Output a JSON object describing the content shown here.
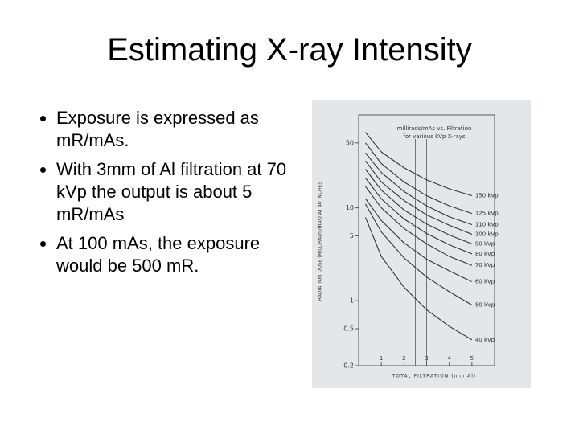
{
  "slide": {
    "title": "Estimating X-ray Intensity",
    "bullets": [
      "Exposure is expressed as mR/mAs.",
      "With 3mm of Al filtration at 70 kVp the output is about 5 mR/mAs",
      "At 100 mAs, the exposure would be 500 mR."
    ]
  },
  "chart_data": {
    "type": "line",
    "title_lines": [
      "millirads/mAs vs. Filtration",
      "for various kVp X-rays"
    ],
    "x_label": "TOTAL FILTRATION (mm Al)",
    "y_label": "RADIATION DOSE (MILLIRADS/mAs) AT 40 INCHES",
    "yscale": "log",
    "grid": false,
    "xlim": [
      0,
      6
    ],
    "xticks": [
      1,
      2,
      3,
      4,
      5
    ],
    "ylim": [
      0.2,
      100
    ],
    "yticks": [
      50,
      10,
      5,
      1,
      0.5,
      0.2
    ],
    "reference_lines": [
      2.5,
      3
    ],
    "x": [
      0.3,
      1,
      2,
      3,
      4,
      5
    ],
    "series": [
      {
        "name": "150 kVp",
        "color": "#333333",
        "values": [
          65,
          40,
          27,
          20,
          16,
          13.5
        ]
      },
      {
        "name": "125 kVp",
        "color": "#333333",
        "values": [
          50,
          30,
          19,
          13.5,
          10.5,
          8.7
        ]
      },
      {
        "name": "110 kVp",
        "color": "#333333",
        "values": [
          39,
          24,
          15,
          10.5,
          8,
          6.6
        ]
      },
      {
        "name": "100 kVp",
        "color": "#333333",
        "values": [
          32,
          19,
          12,
          8.4,
          6.5,
          5.2
        ]
      },
      {
        "name": "90 kVp",
        "color": "#333333",
        "values": [
          26,
          15.5,
          9.5,
          6.7,
          5.1,
          4.1
        ]
      },
      {
        "name": "80 kVp",
        "color": "#333333",
        "values": [
          21,
          12.5,
          7.6,
          5.3,
          4,
          3.2
        ]
      },
      {
        "name": "70 kVp",
        "color": "#333333",
        "values": [
          17,
          10,
          6,
          4.1,
          3,
          2.4
        ]
      },
      {
        "name": "60 kVp",
        "color": "#333333",
        "values": [
          12.6,
          7.3,
          4.2,
          2.8,
          2.1,
          1.6
        ]
      },
      {
        "name": "50 kVp",
        "color": "#333333",
        "values": [
          11,
          5.5,
          2.9,
          1.8,
          1.25,
          0.9
        ]
      },
      {
        "name": "40 kVp",
        "color": "#333333",
        "values": [
          7.9,
          3,
          1.4,
          0.8,
          0.53,
          0.38
        ]
      }
    ]
  }
}
